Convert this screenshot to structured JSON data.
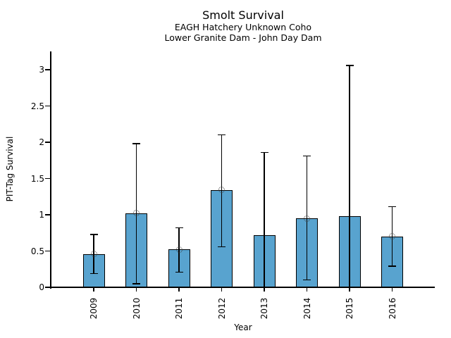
{
  "chart_data": {
    "type": "bar",
    "title": "Smolt Survival",
    "subtitle1": "EAGH Hatchery Unknown Coho",
    "subtitle2": "Lower Granite Dam - John Day Dam",
    "xlabel": "Year",
    "ylabel": "PIT-Tag Survival",
    "categories": [
      "2009",
      "2010",
      "2011",
      "2012",
      "2013",
      "2014",
      "2015",
      "2016"
    ],
    "series": [
      {
        "name": "PIT-Tag Survival",
        "values": [
          0.46,
          1.02,
          0.52,
          1.34,
          0.72,
          0.95,
          0.98,
          0.7
        ]
      }
    ],
    "error_low": [
      0.19,
      0.05,
      0.21,
      0.56,
      0,
      0.1,
      0,
      0.29
    ],
    "error_high": [
      0.73,
      1.98,
      0.82,
      2.1,
      1.86,
      1.81,
      3.06,
      1.11
    ],
    "point_markers": [
      true,
      true,
      true,
      true,
      false,
      true,
      false,
      true
    ],
    "ylim": [
      0,
      3.25
    ],
    "yticks": [
      0,
      0.5,
      1,
      1.5,
      2,
      2.5,
      3
    ],
    "ytick_labels": [
      "0",
      "0.5",
      "1",
      "1.5",
      "2",
      "2.5",
      "3"
    ],
    "grid": false,
    "legend": "none",
    "colors": {
      "bar_fill": "#58A3CF",
      "bar_edge": "#000000",
      "error_bar": "#000000",
      "marker_edge": "#3a3a3a",
      "axis": "#000000",
      "background": "#ffffff"
    }
  }
}
